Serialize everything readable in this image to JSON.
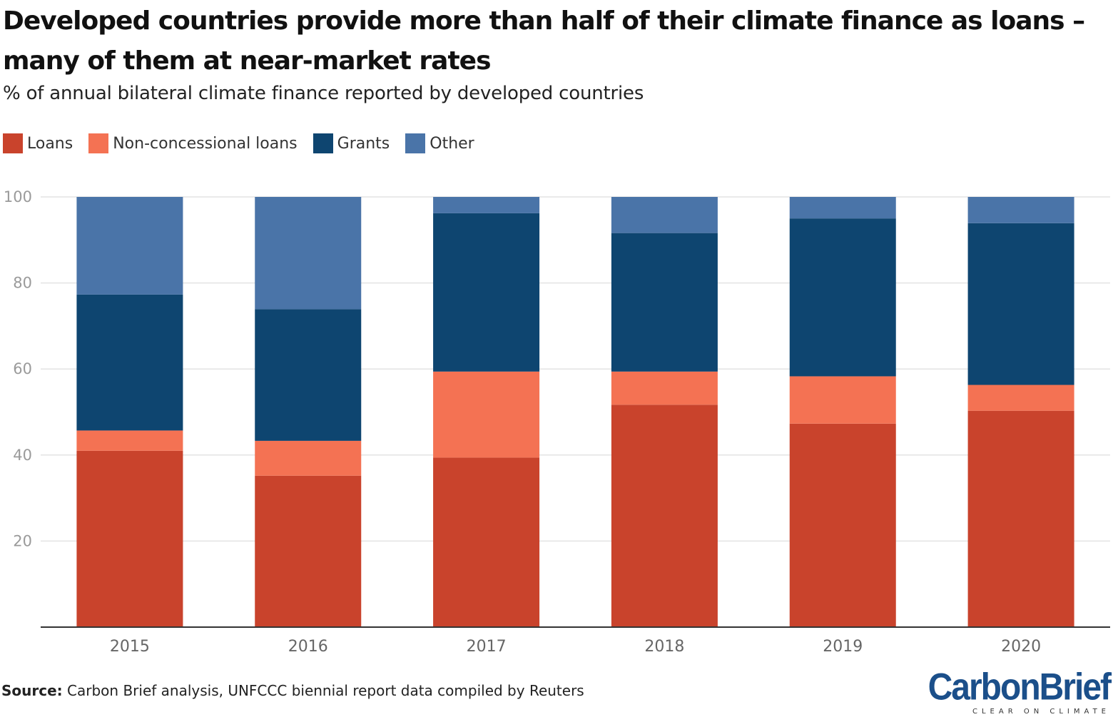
{
  "header": {
    "title": "Developed countries provide more than half of their climate finance as loans – many of them at near-market rates",
    "subtitle": "% of annual bilateral climate finance reported by developed countries"
  },
  "footer": {
    "source_label": "Source:",
    "source_text": " Carbon Brief analysis, UNFCCC biennial report data compiled by Reuters",
    "logo_text": "CarbonBrief",
    "logo_tagline": "CLEAR ON CLIMATE"
  },
  "chart_data": {
    "type": "bar",
    "stacked": true,
    "categories": [
      "2015",
      "2016",
      "2017",
      "2018",
      "2019",
      "2020"
    ],
    "series": [
      {
        "name": "Loans",
        "color": "#c9432c",
        "values": [
          41,
          35.2,
          39.4,
          51.7,
          47.3,
          50.3
        ]
      },
      {
        "name": "Non-concessional loans",
        "color": "#f47253",
        "values": [
          4.7,
          8.1,
          20.0,
          7.7,
          11.0,
          6.0
        ]
      },
      {
        "name": "Grants",
        "color": "#0e4570",
        "values": [
          31.6,
          30.6,
          36.8,
          32.2,
          36.7,
          37.6
        ]
      },
      {
        "name": "Other",
        "color": "#4a74a8",
        "values": [
          22.7,
          26.1,
          3.8,
          8.4,
          5.0,
          6.1
        ]
      }
    ],
    "yticks": [
      "20",
      "40",
      "60",
      "80",
      "100"
    ],
    "ylim": [
      0,
      100
    ],
    "xlabel": "",
    "ylabel": "",
    "grid": true,
    "legend_position": "top-left"
  }
}
